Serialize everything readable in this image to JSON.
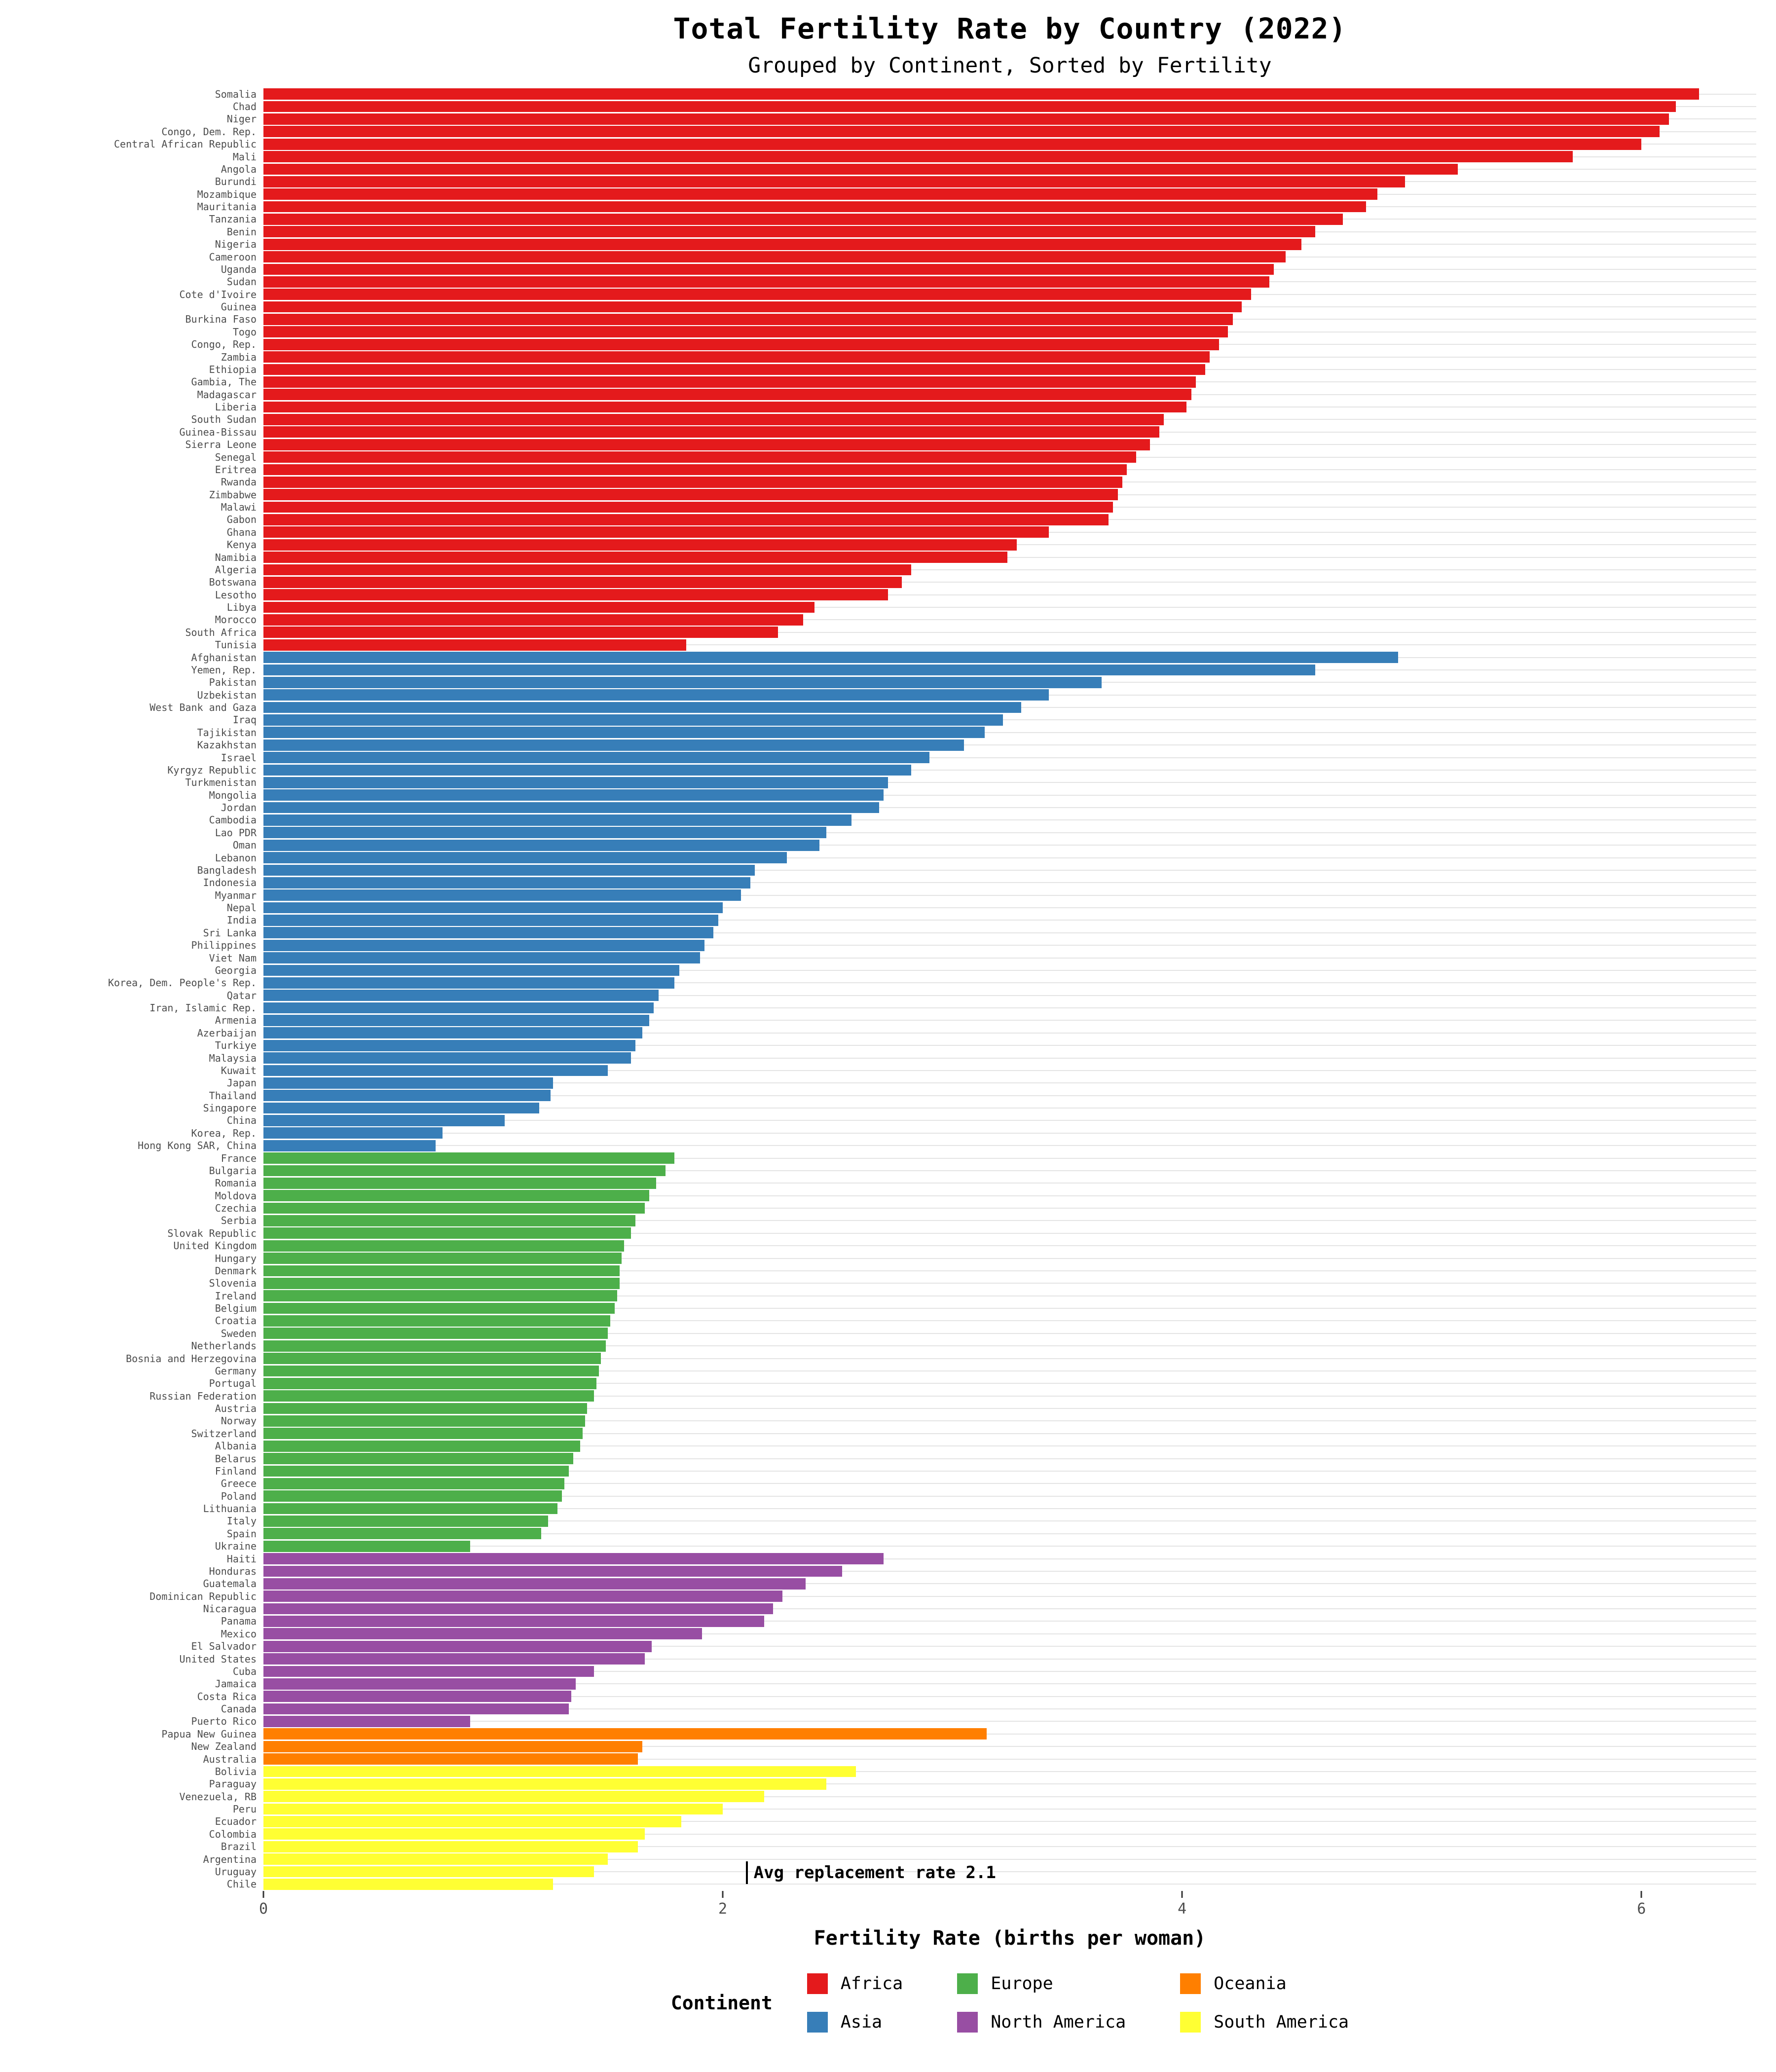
{
  "chart_data": {
    "type": "bar",
    "orientation": "horizontal",
    "title": "Total Fertility Rate by Country (2022)",
    "subtitle": "Grouped by Continent, Sorted by Fertility",
    "xlabel": "Fertility Rate (births per woman)",
    "xlim": [
      0,
      6.5
    ],
    "xticks": [
      0,
      2,
      4,
      6
    ],
    "grid": "horizontal-per-row",
    "legend_title": "Continent",
    "legend_position": "bottom",
    "annotation": {
      "label": "Avg replacement rate 2.1",
      "x": 2.1
    },
    "series": [
      {
        "name": "Africa",
        "color": "#e41a1c",
        "countries": [
          "Somalia",
          "Chad",
          "Niger",
          "Congo, Dem. Rep.",
          "Central African Republic",
          "Mali",
          "Angola",
          "Burundi",
          "Mozambique",
          "Mauritania",
          "Tanzania",
          "Benin",
          "Nigeria",
          "Cameroon",
          "Uganda",
          "Sudan",
          "Cote d'Ivoire",
          "Guinea",
          "Burkina Faso",
          "Togo",
          "Congo, Rep.",
          "Zambia",
          "Ethiopia",
          "Gambia, The",
          "Madagascar",
          "Liberia",
          "South Sudan",
          "Guinea-Bissau",
          "Sierra Leone",
          "Senegal",
          "Eritrea",
          "Rwanda",
          "Zimbabwe",
          "Malawi",
          "Gabon",
          "Ghana",
          "Kenya",
          "Namibia",
          "Algeria",
          "Botswana",
          "Lesotho",
          "Libya",
          "Morocco",
          "South Africa",
          "Tunisia"
        ],
        "values": [
          6.25,
          6.15,
          6.12,
          6.08,
          6.0,
          5.7,
          5.2,
          4.97,
          4.85,
          4.8,
          4.7,
          4.58,
          4.52,
          4.45,
          4.4,
          4.38,
          4.3,
          4.26,
          4.22,
          4.2,
          4.16,
          4.12,
          4.1,
          4.06,
          4.04,
          4.02,
          3.92,
          3.9,
          3.86,
          3.8,
          3.76,
          3.74,
          3.72,
          3.7,
          3.68,
          3.42,
          3.28,
          3.24,
          2.82,
          2.78,
          2.72,
          2.4,
          2.35,
          2.24,
          1.84
        ]
      },
      {
        "name": "Asia",
        "color": "#377eb8",
        "countries": [
          "Afghanistan",
          "Yemen, Rep.",
          "Pakistan",
          "Uzbekistan",
          "West Bank and Gaza",
          "Iraq",
          "Tajikistan",
          "Kazakhstan",
          "Israel",
          "Kyrgyz Republic",
          "Turkmenistan",
          "Mongolia",
          "Jordan",
          "Cambodia",
          "Lao PDR",
          "Oman",
          "Lebanon",
          "Bangladesh",
          "Indonesia",
          "Myanmar",
          "Nepal",
          "India",
          "Sri Lanka",
          "Philippines",
          "Viet Nam",
          "Georgia",
          "Korea, Dem. People's Rep.",
          "Qatar",
          "Iran, Islamic Rep.",
          "Armenia",
          "Azerbaijan",
          "Turkiye",
          "Malaysia",
          "Kuwait",
          "Japan",
          "Thailand",
          "Singapore",
          "China",
          "Korea, Rep.",
          "Hong Kong SAR, China"
        ],
        "values": [
          4.94,
          4.58,
          3.65,
          3.42,
          3.3,
          3.22,
          3.14,
          3.05,
          2.9,
          2.82,
          2.72,
          2.7,
          2.68,
          2.56,
          2.45,
          2.42,
          2.28,
          2.14,
          2.12,
          2.08,
          2.0,
          1.98,
          1.96,
          1.92,
          1.9,
          1.81,
          1.79,
          1.72,
          1.7,
          1.68,
          1.65,
          1.62,
          1.6,
          1.5,
          1.26,
          1.25,
          1.2,
          1.05,
          0.78,
          0.75
        ]
      },
      {
        "name": "Europe",
        "color": "#4daf4a",
        "countries": [
          "France",
          "Bulgaria",
          "Romania",
          "Moldova",
          "Czechia",
          "Serbia",
          "Slovak Republic",
          "United Kingdom",
          "Hungary",
          "Denmark",
          "Slovenia",
          "Ireland",
          "Belgium",
          "Croatia",
          "Sweden",
          "Netherlands",
          "Bosnia and Herzegovina",
          "Germany",
          "Portugal",
          "Russian Federation",
          "Austria",
          "Norway",
          "Switzerland",
          "Albania",
          "Belarus",
          "Finland",
          "Greece",
          "Poland",
          "Lithuania",
          "Italy",
          "Spain",
          "Ukraine"
        ],
        "values": [
          1.79,
          1.75,
          1.71,
          1.68,
          1.66,
          1.62,
          1.6,
          1.57,
          1.56,
          1.55,
          1.55,
          1.54,
          1.53,
          1.51,
          1.5,
          1.49,
          1.47,
          1.46,
          1.45,
          1.44,
          1.41,
          1.4,
          1.39,
          1.38,
          1.35,
          1.33,
          1.31,
          1.3,
          1.28,
          1.24,
          1.21,
          0.9
        ]
      },
      {
        "name": "North America",
        "color": "#984ea3",
        "countries": [
          "Haiti",
          "Honduras",
          "Guatemala",
          "Dominican Republic",
          "Nicaragua",
          "Panama",
          "Mexico",
          "El Salvador",
          "United States",
          "Cuba",
          "Jamaica",
          "Costa Rica",
          "Canada",
          "Puerto Rico"
        ],
        "values": [
          2.7,
          2.52,
          2.36,
          2.26,
          2.22,
          2.18,
          1.91,
          1.69,
          1.66,
          1.44,
          1.36,
          1.34,
          1.33,
          0.9
        ]
      },
      {
        "name": "Oceania",
        "color": "#ff7f00",
        "countries": [
          "Papua New Guinea",
          "New Zealand",
          "Australia"
        ],
        "values": [
          3.15,
          1.65,
          1.63
        ]
      },
      {
        "name": "South America",
        "color": "#ffff33",
        "countries": [
          "Bolivia",
          "Paraguay",
          "Venezuela, RB",
          "Peru",
          "Ecuador",
          "Colombia",
          "Brazil",
          "Argentina",
          "Uruguay",
          "Chile"
        ],
        "values": [
          2.58,
          2.45,
          2.18,
          2.0,
          1.82,
          1.66,
          1.63,
          1.5,
          1.44,
          1.26
        ]
      }
    ]
  }
}
